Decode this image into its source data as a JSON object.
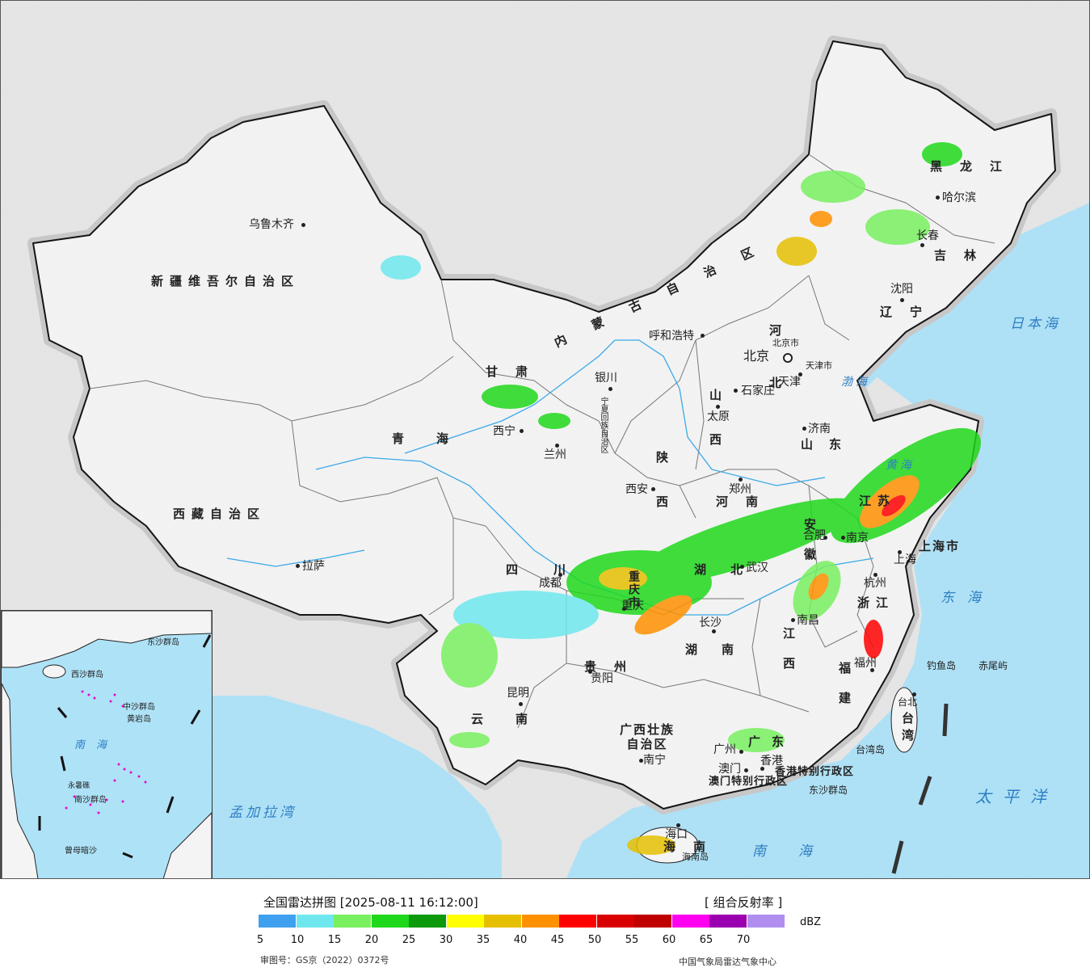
{
  "map": {
    "cities": [
      {
        "name": "乌鲁木齐"
      },
      {
        "name": "呼和浩特"
      },
      {
        "name": "银川"
      },
      {
        "name": "西宁"
      },
      {
        "name": "兰州"
      },
      {
        "name": "西安"
      },
      {
        "name": "郑州"
      },
      {
        "name": "北京"
      },
      {
        "name": "天津"
      },
      {
        "name": "石家庄"
      },
      {
        "name": "太原"
      },
      {
        "name": "济南"
      },
      {
        "name": "沈阳"
      },
      {
        "name": "长春"
      },
      {
        "name": "哈尔滨"
      },
      {
        "name": "南京"
      },
      {
        "name": "合肥"
      },
      {
        "name": "上海"
      },
      {
        "name": "杭州"
      },
      {
        "name": "武汉"
      },
      {
        "name": "南昌"
      },
      {
        "name": "长沙"
      },
      {
        "name": "福州"
      },
      {
        "name": "台北"
      },
      {
        "name": "广州"
      },
      {
        "name": "香港"
      },
      {
        "name": "澳门"
      },
      {
        "name": "南宁"
      },
      {
        "name": "海口"
      },
      {
        "name": "贵阳"
      },
      {
        "name": "昆明"
      },
      {
        "name": "成都"
      },
      {
        "name": "重庆"
      },
      {
        "name": "拉萨"
      }
    ],
    "regions": [
      "新疆维吾尔自治区",
      "西藏自治区",
      "青海",
      "甘肃",
      "内蒙古自治区",
      "黑龙江",
      "吉林",
      "辽宁",
      "河北",
      "山西",
      "山东",
      "河南",
      "陕西",
      "四川",
      "重庆市",
      "湖北",
      "湖南",
      "江西",
      "浙江",
      "福建",
      "台湾",
      "广东",
      "广西壮族自治区",
      "云南",
      "贵州",
      "海南",
      "安徽",
      "江苏",
      "上海市",
      "天津市",
      "北京市",
      "宁夏回族自治区",
      "香港特别行政区",
      "澳门特别行政区"
    ],
    "seas": [
      "日本海",
      "渤海",
      "黄海",
      "东海",
      "太平洋",
      "南海",
      "孟加拉湾"
    ],
    "islands": [
      "钓鱼岛",
      "赤尾屿",
      "台湾岛",
      "东沙群岛",
      "海南岛"
    ],
    "inset_labels": [
      "南海",
      "中沙群岛",
      "西沙群岛",
      "南沙群岛",
      "黄岩岛",
      "曾母暗沙",
      "永暑礁",
      "东沙群岛"
    ],
    "colors": {
      "land": "#f4f4f4",
      "outside": "#e6e6e6",
      "sea": "#aee2f7",
      "border": "#111111"
    }
  },
  "legend": {
    "title": "全国雷达拼图 [2025-08-11 16:12:00]",
    "product": "[ 组合反射率 ]",
    "unit": "dBZ",
    "ticks": [
      "5",
      "10",
      "15",
      "20",
      "25",
      "30",
      "35",
      "40",
      "45",
      "50",
      "55",
      "60",
      "65",
      "70"
    ],
    "colors": [
      "#3fa0f0",
      "#6ee8ee",
      "#79f060",
      "#1fd81c",
      "#0c990c",
      "#ffff00",
      "#e6c000",
      "#ff9000",
      "#ff0000",
      "#d80000",
      "#c00000",
      "#ff00f0",
      "#9b00b0",
      "#b08ef0"
    ],
    "approval": "审图号：GS京（2022）0372号",
    "source": "中国气象局雷达气象中心"
  }
}
